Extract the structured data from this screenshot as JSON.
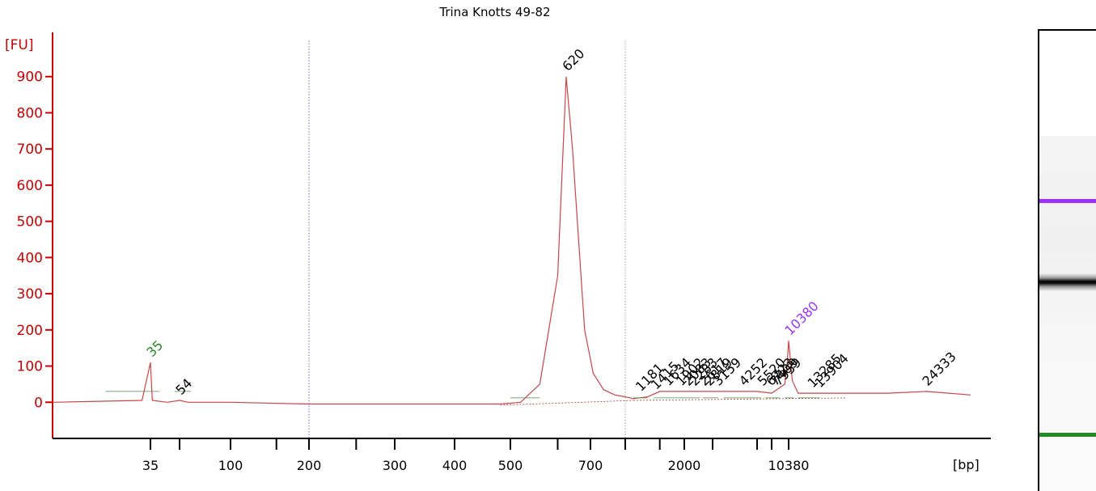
{
  "window": {
    "title": "Trina Knotts 49-82"
  },
  "colors": {
    "axis": "#cc0000",
    "trace": "#cc4444",
    "grid_blue": "#4a4aa8",
    "marker_lower": "#228b22",
    "marker_upper": "#9b30ff",
    "text": "#000000"
  },
  "chart_data": {
    "type": "line",
    "title": "Trina Knotts 49-82",
    "ylabel": "[FU]",
    "xlabel": "[bp]",
    "ylim": [
      -100,
      1000
    ],
    "yticks": [
      0,
      100,
      200,
      300,
      400,
      500,
      600,
      700,
      800,
      900
    ],
    "ytick_labels": [
      "0",
      "100",
      "200",
      "300",
      "400",
      "500",
      "600",
      "700",
      "800",
      "900"
    ],
    "x_scale": "ladder (non-linear)",
    "xtick_labels": [
      "35",
      "100",
      "200",
      "300",
      "400",
      "500",
      "700",
      "2000",
      "10380"
    ],
    "grid": "dashed vertical lines at 200 and 1000 bp",
    "series": [
      {
        "x": [
          25,
          34,
          35,
          36,
          45,
          54,
          60,
          100,
          200,
          300,
          400,
          480,
          520,
          560,
          600,
          620,
          640,
          680,
          720,
          800,
          900,
          1000,
          1100,
          1300,
          1500,
          2000,
          3000,
          5000,
          7000,
          9500,
          10000,
          10380,
          10800,
          11500,
          13000,
          16000,
          20000,
          24333,
          30000
        ],
        "y": [
          0,
          5,
          110,
          5,
          0,
          5,
          0,
          0,
          -5,
          -5,
          -5,
          -5,
          0,
          50,
          350,
          900,
          700,
          200,
          80,
          35,
          20,
          15,
          10,
          15,
          30,
          30,
          30,
          30,
          25,
          50,
          100,
          170,
          60,
          25,
          25,
          25,
          25,
          30,
          20
        ]
      }
    ],
    "peaks": [
      {
        "label": "35",
        "x": 35,
        "y": 110,
        "color": "#228b22"
      },
      {
        "label": "54",
        "x": 54,
        "y": 5,
        "color": "#000000"
      },
      {
        "label": "620",
        "x": 620,
        "y": 900,
        "color": "#000000"
      },
      {
        "label": "1181",
        "x": 1181,
        "y": 15,
        "color": "#000000"
      },
      {
        "label": "1415",
        "x": 1415,
        "y": 20,
        "color": "#000000"
      },
      {
        "label": "1634",
        "x": 1634,
        "y": 30,
        "color": "#000000"
      },
      {
        "label": "1902",
        "x": 1902,
        "y": 30,
        "color": "#000000"
      },
      {
        "label": "2083",
        "x": 2083,
        "y": 30,
        "color": "#000000"
      },
      {
        "label": "2283",
        "x": 2283,
        "y": 30,
        "color": "#000000"
      },
      {
        "label": "2617",
        "x": 2617,
        "y": 30,
        "color": "#000000"
      },
      {
        "label": "2819",
        "x": 2819,
        "y": 30,
        "color": "#000000"
      },
      {
        "label": "3159",
        "x": 3159,
        "y": 30,
        "color": "#000000"
      },
      {
        "label": "4252",
        "x": 4252,
        "y": 30,
        "color": "#000000"
      },
      {
        "label": "5520",
        "x": 5520,
        "y": 30,
        "color": "#000000"
      },
      {
        "label": "6723",
        "x": 6723,
        "y": 30,
        "color": "#000000"
      },
      {
        "label": "7409",
        "x": 7409,
        "y": 30,
        "color": "#000000"
      },
      {
        "label": "7959",
        "x": 7959,
        "y": 30,
        "color": "#000000"
      },
      {
        "label": "10380",
        "x": 10380,
        "y": 170,
        "color": "#9b30ff"
      },
      {
        "label": "13285",
        "x": 13285,
        "y": 25,
        "color": "#000000"
      },
      {
        "label": "13904",
        "x": 13904,
        "y": 25,
        "color": "#000000"
      },
      {
        "label": "24333",
        "x": 24333,
        "y": 30,
        "color": "#000000"
      }
    ],
    "gel_bands": [
      {
        "position": "upper marker",
        "color": "#9b30ff"
      },
      {
        "position": "main band",
        "color": "#000000"
      },
      {
        "position": "lower marker",
        "color": "#228b22"
      }
    ]
  }
}
